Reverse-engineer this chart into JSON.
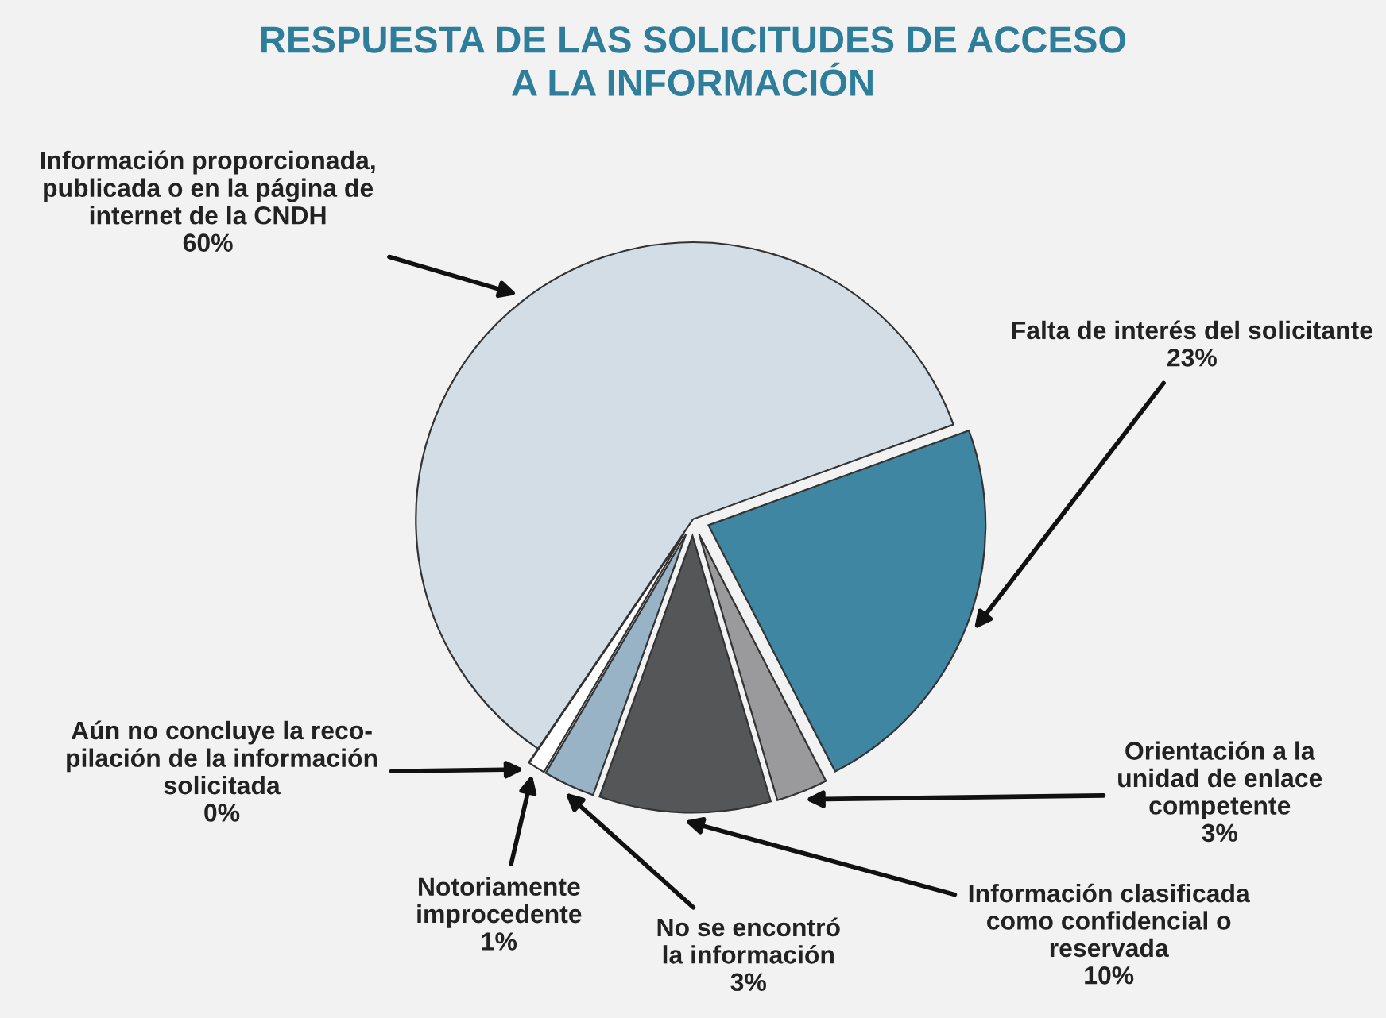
{
  "chart_data": {
    "type": "pie",
    "title": "RESPUESTA DE LAS SOLICITUDES DE ACCESO\nA LA INFORMACIÓN",
    "categories": [
      "Falta de interés del solicitante",
      "Orientación a la\nunidad de enlace\ncompetente",
      "Información clasificada\ncomo confidencial o\nreservada",
      "No se encontró\nla información",
      "Notoriamente\nimprocedente",
      "Aún no concluye la reco-\npilación de la información\nsolicitada",
      "Información proporcionada,\npublicada o en la página de\ninternet de la CNDH"
    ],
    "values": [
      23,
      3,
      10,
      3,
      1,
      0,
      60
    ],
    "value_labels": [
      "23%",
      "3%",
      "10%",
      "3%",
      "1%",
      "0%",
      "60%"
    ],
    "colors": [
      "#3f86a3",
      "#9a9a9c",
      "#555658",
      "#98b2c6",
      "#ffffff",
      "#a9c3d6",
      "#d2dde5"
    ],
    "legend": false
  }
}
